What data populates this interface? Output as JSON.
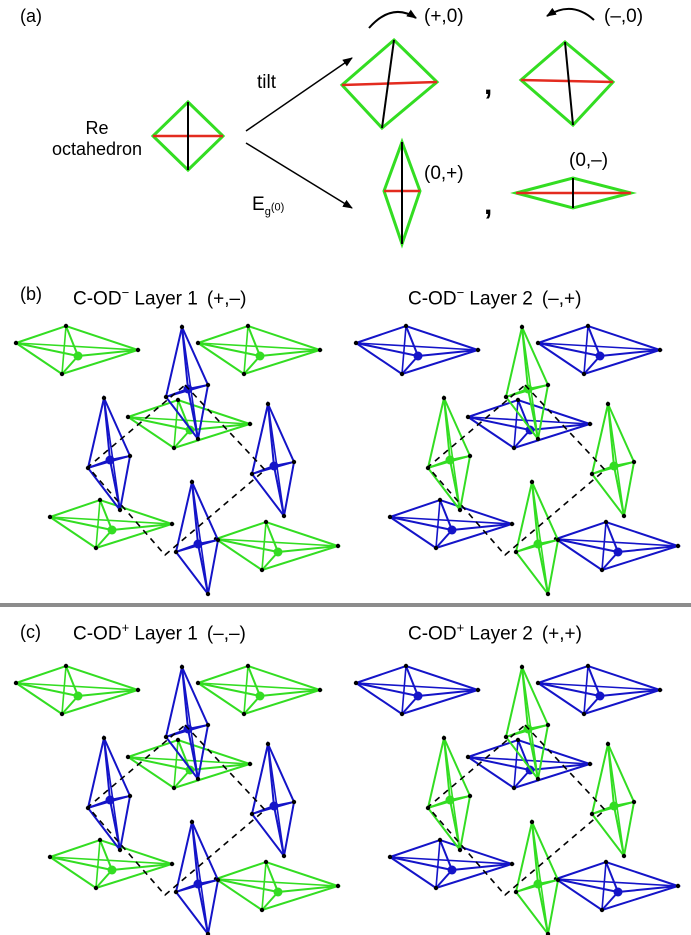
{
  "colors": {
    "green": "#33dd22",
    "blue": "#1414c8",
    "red": "#e32b1f",
    "black": "#000000",
    "divider": "#8c8c8c"
  },
  "panel_a": {
    "letter": "(a)",
    "octahedron_label_line1": "Re",
    "octahedron_label_line2": "octahedron",
    "tilt_label": "tilt",
    "eg_main": "E",
    "eg_sub": "g",
    "eg_sup": "(0)",
    "tag_plus0": "(+,0)",
    "tag_minus0": "(–,0)",
    "tag_0plus": "(0,+)",
    "tag_0minus": "(0,–)",
    "comma": ","
  },
  "panel_b": {
    "letter": "(b)",
    "layer1": {
      "prefix": "C-OD",
      "charge": "−",
      "text": " Layer 1",
      "sign": "(+,–)"
    },
    "layer2": {
      "prefix": "C-OD",
      "charge": "−",
      "text": " Layer 2",
      "sign": "(–,+)"
    }
  },
  "panel_c": {
    "letter": "(c)",
    "layer1": {
      "prefix": "C-OD",
      "charge": "+",
      "text": " Layer 1",
      "sign": "(–,–)"
    },
    "layer2": {
      "prefix": "C-OD",
      "charge": "+",
      "text": " Layer 2",
      "sign": "(+,+)"
    }
  }
}
